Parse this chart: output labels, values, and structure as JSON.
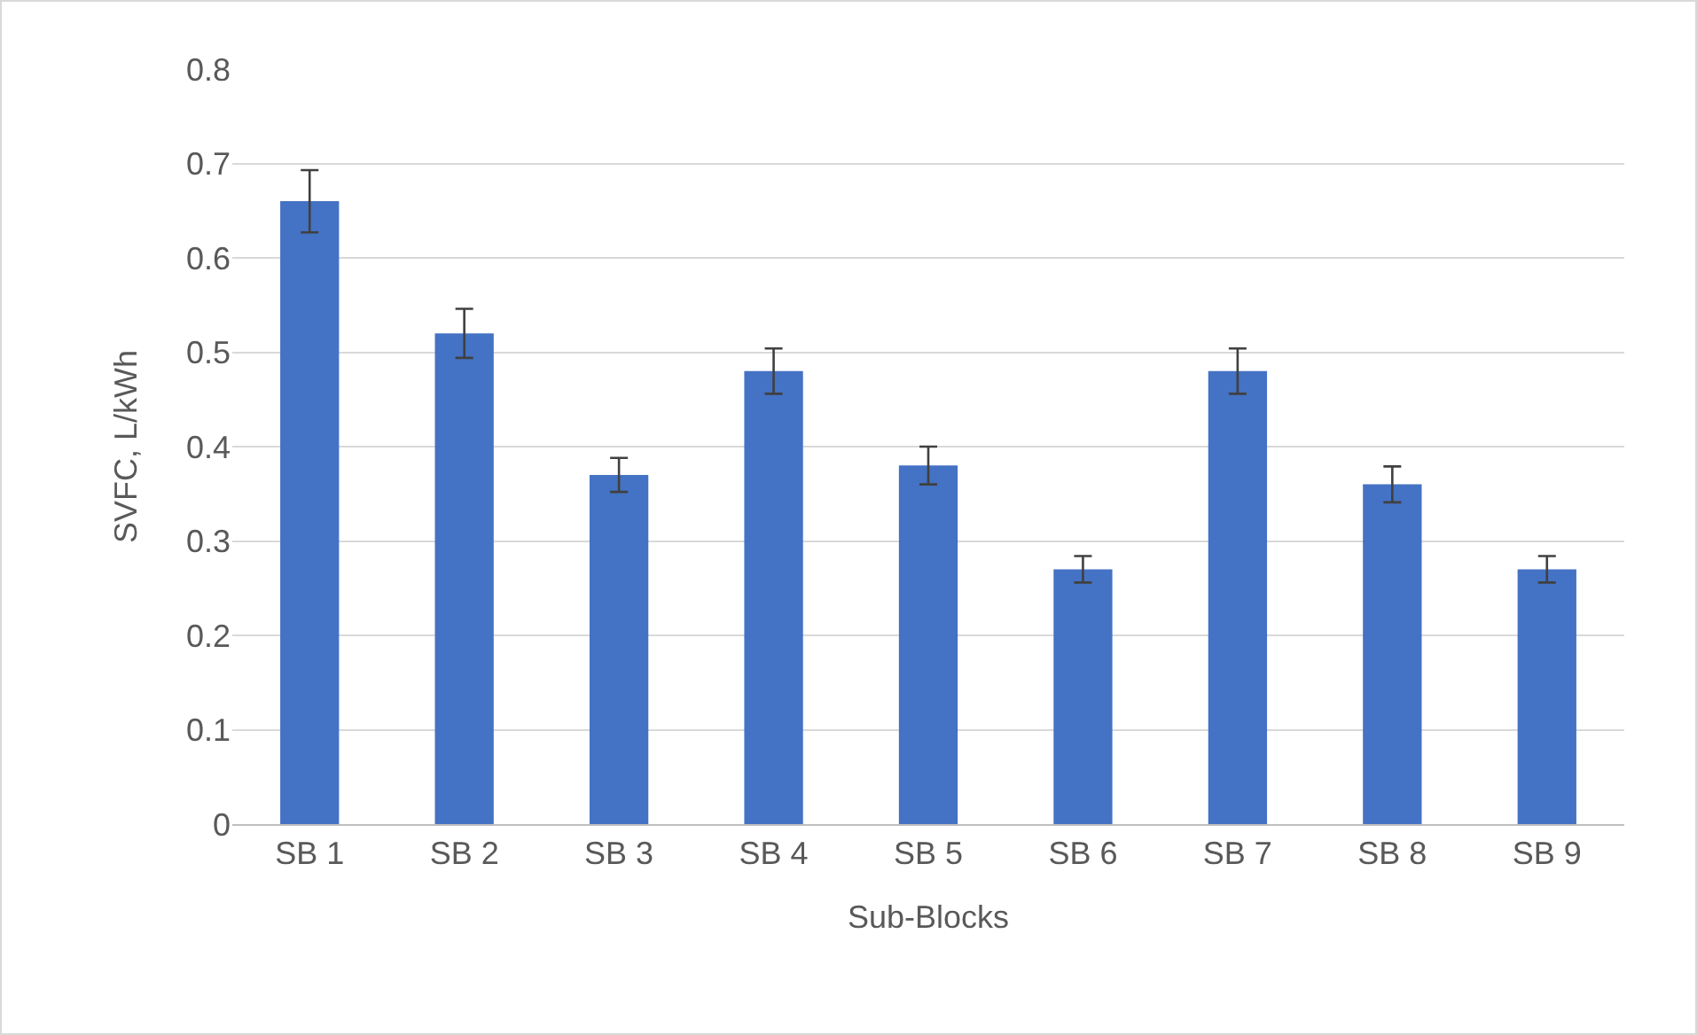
{
  "chart_data": {
    "type": "bar",
    "xlabel": "Sub-Blocks",
    "ylabel": "SVFC, L/kWh",
    "categories": [
      "SB 1",
      "SB 2",
      "SB 3",
      "SB 4",
      "SB 5",
      "SB 6",
      "SB 7",
      "SB 8",
      "SB 9"
    ],
    "values": [
      0.66,
      0.52,
      0.37,
      0.48,
      0.38,
      0.27,
      0.48,
      0.36,
      0.27
    ],
    "errors": [
      0.033,
      0.026,
      0.018,
      0.024,
      0.02,
      0.014,
      0.024,
      0.019,
      0.014
    ],
    "color": "#4472c4",
    "ylim": [
      0,
      0.8
    ],
    "yticks": [
      0,
      0.1,
      0.2,
      0.3,
      0.4,
      0.5,
      0.6,
      0.7,
      0.8
    ],
    "grid": "y"
  }
}
